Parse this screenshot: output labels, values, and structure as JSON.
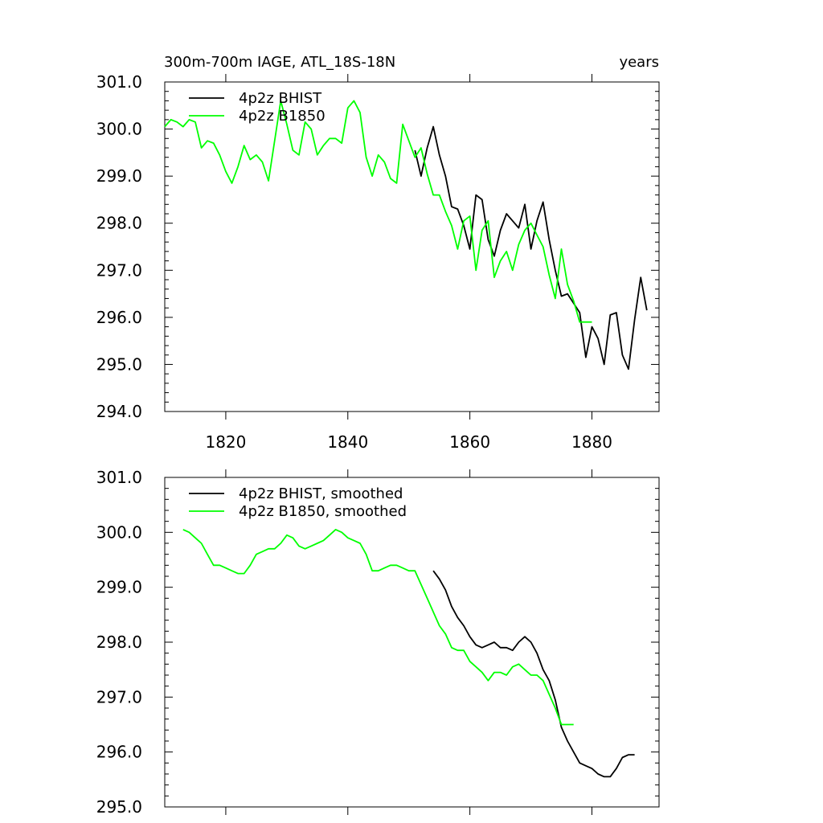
{
  "chart_data": [
    {
      "type": "line",
      "title": "300m-700m IAGE, ATL_18S-18N",
      "units_label": "years",
      "xlim": [
        1810,
        1891
      ],
      "ylim": [
        294.0,
        301.0
      ],
      "x_ticks": [
        1820,
        1840,
        1860,
        1880
      ],
      "x_tick_labels": [
        "1820",
        "1840",
        "1860",
        "1880"
      ],
      "y_ticks": [
        294.0,
        295.0,
        296.0,
        297.0,
        298.0,
        299.0,
        300.0,
        301.0
      ],
      "y_tick_labels": [
        "294.0",
        "295.0",
        "296.0",
        "297.0",
        "298.0",
        "299.0",
        "300.0",
        "301.0"
      ],
      "legend_position": "top-left",
      "series": [
        {
          "name": "4p2z BHIST",
          "color": "#000000",
          "x": [
            1851,
            1852,
            1853,
            1854,
            1855,
            1856,
            1857,
            1858,
            1859,
            1860,
            1861,
            1862,
            1863,
            1864,
            1865,
            1866,
            1867,
            1868,
            1869,
            1870,
            1871,
            1872,
            1873,
            1874,
            1875,
            1876,
            1877,
            1878,
            1879,
            1880,
            1881,
            1882,
            1883,
            1884,
            1885,
            1886,
            1887,
            1888,
            1889
          ],
          "values": [
            299.55,
            299.0,
            299.6,
            300.05,
            299.45,
            299.0,
            298.35,
            298.3,
            297.95,
            297.45,
            298.6,
            298.5,
            297.65,
            297.3,
            297.85,
            298.2,
            298.05,
            297.9,
            298.4,
            297.45,
            298.05,
            298.45,
            297.65,
            297.0,
            296.45,
            296.5,
            296.3,
            296.1,
            295.15,
            295.8,
            295.55,
            295.0,
            296.05,
            296.1,
            295.2,
            294.9,
            295.95,
            296.85,
            296.15
          ]
        },
        {
          "name": "4p2z B1850",
          "color": "#00ff00",
          "x": [
            1810,
            1811,
            1812,
            1813,
            1814,
            1815,
            1816,
            1817,
            1818,
            1819,
            1820,
            1821,
            1822,
            1823,
            1824,
            1825,
            1826,
            1827,
            1828,
            1829,
            1830,
            1831,
            1832,
            1833,
            1834,
            1835,
            1836,
            1837,
            1838,
            1839,
            1840,
            1841,
            1842,
            1843,
            1844,
            1845,
            1846,
            1847,
            1848,
            1849,
            1850,
            1851,
            1852,
            1853,
            1854,
            1855,
            1856,
            1857,
            1858,
            1859,
            1860,
            1861,
            1862,
            1863,
            1864,
            1865,
            1866,
            1867,
            1868,
            1869,
            1870,
            1871,
            1872,
            1873,
            1874,
            1875,
            1876,
            1877,
            1878,
            1879,
            1880
          ],
          "values": [
            300.05,
            300.2,
            300.15,
            300.05,
            300.2,
            300.15,
            299.6,
            299.75,
            299.7,
            299.45,
            299.1,
            298.85,
            299.2,
            299.65,
            299.35,
            299.45,
            299.3,
            298.9,
            299.75,
            300.6,
            300.1,
            299.55,
            299.45,
            300.15,
            300.0,
            299.45,
            299.65,
            299.8,
            299.8,
            299.7,
            300.45,
            300.6,
            300.35,
            299.4,
            299.0,
            299.45,
            299.3,
            298.95,
            298.85,
            300.1,
            299.75,
            299.4,
            299.6,
            299.05,
            298.6,
            298.6,
            298.25,
            297.95,
            297.45,
            298.05,
            298.15,
            297.0,
            297.85,
            298.05,
            296.85,
            297.2,
            297.4,
            297.0,
            297.55,
            297.85,
            298.0,
            297.75,
            297.5,
            296.9,
            296.4,
            297.45,
            296.7,
            296.35,
            295.9,
            295.9,
            295.9
          ]
        }
      ]
    },
    {
      "type": "line",
      "xlim": [
        1810,
        1891
      ],
      "ylim": [
        295.0,
        301.0
      ],
      "x_ticks": [
        1820,
        1840,
        1860,
        1880
      ],
      "x_tick_labels": [],
      "y_ticks": [
        295.0,
        296.0,
        297.0,
        298.0,
        299.0,
        300.0,
        301.0
      ],
      "y_tick_labels": [
        "295.0",
        "296.0",
        "297.0",
        "298.0",
        "299.0",
        "300.0",
        "301.0"
      ],
      "legend_position": "top-left",
      "series": [
        {
          "name": "4p2z BHIST, smoothed",
          "color": "#000000",
          "x": [
            1854,
            1855,
            1856,
            1857,
            1858,
            1859,
            1860,
            1861,
            1862,
            1863,
            1864,
            1865,
            1866,
            1867,
            1868,
            1869,
            1870,
            1871,
            1872,
            1873,
            1874,
            1875,
            1876,
            1877,
            1878,
            1879,
            1880,
            1881,
            1882,
            1883,
            1884,
            1885,
            1886,
            1887
          ],
          "values": [
            299.3,
            299.15,
            298.95,
            298.65,
            298.45,
            298.3,
            298.1,
            297.95,
            297.9,
            297.95,
            298.0,
            297.9,
            297.9,
            297.85,
            298.0,
            298.1,
            298.0,
            297.8,
            297.5,
            297.3,
            296.95,
            296.45,
            296.2,
            296.0,
            295.8,
            295.75,
            295.7,
            295.6,
            295.55,
            295.55,
            295.7,
            295.9,
            295.95,
            295.95
          ]
        },
        {
          "name": "4p2z B1850, smoothed",
          "color": "#00ff00",
          "x": [
            1813,
            1814,
            1815,
            1816,
            1817,
            1818,
            1819,
            1820,
            1821,
            1822,
            1823,
            1824,
            1825,
            1826,
            1827,
            1828,
            1829,
            1830,
            1831,
            1832,
            1833,
            1834,
            1835,
            1836,
            1837,
            1838,
            1839,
            1840,
            1841,
            1842,
            1843,
            1844,
            1845,
            1846,
            1847,
            1848,
            1849,
            1850,
            1851,
            1852,
            1853,
            1854,
            1855,
            1856,
            1857,
            1858,
            1859,
            1860,
            1861,
            1862,
            1863,
            1864,
            1865,
            1866,
            1867,
            1868,
            1869,
            1870,
            1871,
            1872,
            1873,
            1874,
            1875,
            1876,
            1877
          ],
          "values": [
            300.05,
            300.0,
            299.9,
            299.8,
            299.6,
            299.4,
            299.4,
            299.35,
            299.3,
            299.25,
            299.25,
            299.4,
            299.6,
            299.65,
            299.7,
            299.7,
            299.8,
            299.95,
            299.9,
            299.75,
            299.7,
            299.75,
            299.8,
            299.85,
            299.95,
            300.05,
            300.0,
            299.9,
            299.85,
            299.8,
            299.6,
            299.3,
            299.3,
            299.35,
            299.4,
            299.4,
            299.35,
            299.3,
            299.3,
            299.05,
            298.8,
            298.55,
            298.3,
            298.15,
            297.9,
            297.85,
            297.85,
            297.65,
            297.55,
            297.45,
            297.3,
            297.45,
            297.45,
            297.4,
            297.55,
            297.6,
            297.5,
            297.4,
            297.4,
            297.3,
            297.05,
            296.8,
            296.5,
            296.5,
            296.5
          ]
        }
      ]
    }
  ]
}
